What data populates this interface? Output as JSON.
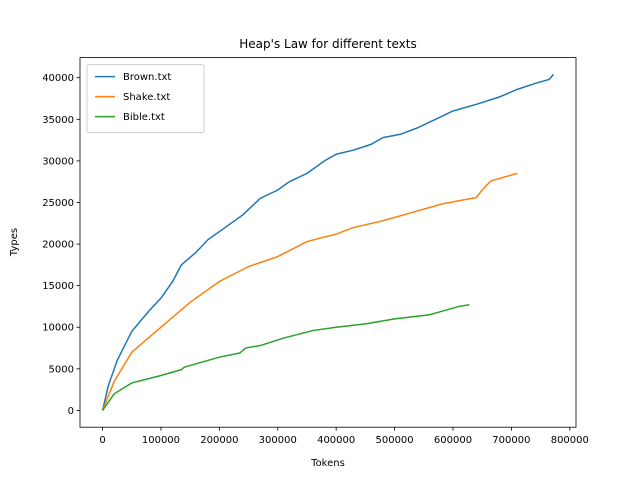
{
  "chart_data": {
    "type": "line",
    "title": "Heap's Law for different texts",
    "x_label": "Tokens",
    "y_label": "Types",
    "xlim": [
      -38600,
      810600
    ],
    "ylim": [
      -2020,
      42420
    ],
    "xticks": [
      0,
      100000,
      200000,
      300000,
      400000,
      500000,
      600000,
      700000,
      800000
    ],
    "yticks": [
      0,
      5000,
      10000,
      15000,
      20000,
      25000,
      30000,
      35000,
      40000
    ],
    "legend": "upper left",
    "series": [
      {
        "name": "Brown.txt",
        "color": "#1f77b4",
        "x": [
          0,
          10000,
          25000,
          50000,
          80000,
          100000,
          120000,
          135000,
          160000,
          180000,
          210000,
          240000,
          270000,
          300000,
          320000,
          350000,
          380000,
          400000,
          430000,
          460000,
          480000,
          510000,
          540000,
          570000,
          600000,
          640000,
          680000,
          710000,
          740000,
          765000,
          772000
        ],
        "values": [
          0,
          3000,
          6000,
          9500,
          12000,
          13500,
          15500,
          17500,
          19000,
          20500,
          22000,
          23500,
          25500,
          26500,
          27500,
          28500,
          30000,
          30800,
          31300,
          32000,
          32800,
          33200,
          34000,
          35000,
          36000,
          36800,
          37700,
          38600,
          39300,
          39800,
          40400
        ]
      },
      {
        "name": "Shake.txt",
        "color": "#ff7f0e",
        "x": [
          0,
          20000,
          50000,
          100000,
          150000,
          200000,
          250000,
          300000,
          350000,
          400000,
          430000,
          480000,
          530000,
          580000,
          640000,
          650000,
          665000,
          710000
        ],
        "values": [
          0,
          3500,
          7000,
          10000,
          13000,
          15500,
          17300,
          18500,
          20300,
          21200,
          22000,
          22800,
          23800,
          24800,
          25600,
          26500,
          27600,
          28500
        ]
      },
      {
        "name": "Bible.txt",
        "color": "#2ca02c",
        "x": [
          0,
          20000,
          50000,
          100000,
          135000,
          140000,
          200000,
          235000,
          245000,
          270000,
          310000,
          360000,
          400000,
          450000,
          500000,
          560000,
          580000,
          610000,
          628000
        ],
        "values": [
          0,
          2000,
          3300,
          4200,
          4900,
          5200,
          6400,
          6900,
          7500,
          7800,
          8700,
          9600,
          10000,
          10400,
          11000,
          11500,
          11900,
          12500,
          12700
        ]
      }
    ]
  }
}
